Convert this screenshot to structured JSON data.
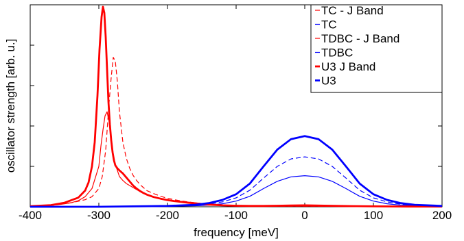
{
  "chart_data": {
    "type": "line",
    "xlabel": "frequency [meV]",
    "ylabel": "oscillator strength [arb. u.]",
    "xlim": [
      -400,
      200
    ],
    "ylim": [
      0,
      1.0
    ],
    "xticks": [
      -400,
      -300,
      -200,
      -100,
      0,
      100,
      200
    ],
    "xtick_labels": [
      "-400",
      "-300",
      "-200",
      "-100",
      "0",
      "100",
      "200"
    ],
    "yticks": [
      0.2,
      0.4,
      0.6,
      0.8
    ],
    "grid": false,
    "legend_position": "top-right",
    "series": [
      {
        "name": "TC - J Band",
        "color": "#ff0000",
        "dash": "solid",
        "width": "thin",
        "x": [
          -400,
          -380,
          -360,
          -340,
          -330,
          -320,
          -310,
          -300,
          -297,
          -294,
          -291,
          -288,
          -285,
          -282,
          -279,
          -276,
          -273,
          -270,
          -265,
          -260,
          -255,
          -250,
          -245,
          -240,
          -230,
          -220,
          -210,
          -200,
          -190,
          -180,
          -170,
          -160,
          -150,
          -140,
          -130,
          -120,
          -110,
          -100,
          -80,
          -60,
          -40,
          -20,
          0,
          50,
          100,
          150,
          200
        ],
        "y": [
          0.002,
          0.005,
          0.01,
          0.02,
          0.03,
          0.05,
          0.09,
          0.2,
          0.3,
          0.38,
          0.45,
          0.47,
          0.42,
          0.34,
          0.26,
          0.21,
          0.18,
          0.15,
          0.13,
          0.115,
          0.105,
          0.095,
          0.085,
          0.075,
          0.06,
          0.05,
          0.042,
          0.035,
          0.03,
          0.026,
          0.023,
          0.02,
          0.016,
          0.013,
          0.01,
          0.008,
          0.006,
          0.005,
          0.004,
          0.003,
          0.003,
          0.003,
          0.003,
          0.002,
          0.001,
          0.001,
          0.001
        ]
      },
      {
        "name": "TC",
        "color": "#0000ff",
        "dash": "solid",
        "width": "thin",
        "x": [
          -400,
          -300,
          -200,
          -160,
          -140,
          -120,
          -100,
          -80,
          -60,
          -40,
          -20,
          0,
          20,
          40,
          60,
          80,
          100,
          120,
          140,
          160,
          200
        ],
        "y": [
          0,
          0,
          0.002,
          0.005,
          0.008,
          0.015,
          0.028,
          0.052,
          0.09,
          0.126,
          0.148,
          0.154,
          0.148,
          0.126,
          0.09,
          0.052,
          0.028,
          0.015,
          0.008,
          0.005,
          0.002
        ]
      },
      {
        "name": "TDBC - J Band",
        "color": "#ff0000",
        "dash": "dashed",
        "width": "thin",
        "x": [
          -400,
          -370,
          -340,
          -320,
          -310,
          -300,
          -295,
          -290,
          -285,
          -282,
          -279,
          -276,
          -273,
          -270,
          -265,
          -260,
          -255,
          -250,
          -245,
          -240,
          -235,
          -230,
          -220,
          -210,
          -200,
          -190,
          -180,
          -170,
          -160,
          -150,
          -140,
          -130,
          -120,
          -100,
          -80,
          -60,
          -40,
          -20,
          0,
          50,
          100,
          150,
          200
        ],
        "y": [
          0.003,
          0.008,
          0.02,
          0.035,
          0.05,
          0.09,
          0.15,
          0.28,
          0.52,
          0.64,
          0.74,
          0.72,
          0.62,
          0.47,
          0.32,
          0.24,
          0.19,
          0.155,
          0.13,
          0.11,
          0.095,
          0.08,
          0.065,
          0.052,
          0.042,
          0.035,
          0.029,
          0.024,
          0.02,
          0.016,
          0.013,
          0.01,
          0.008,
          0.005,
          0.004,
          0.003,
          0.003,
          0.003,
          0.003,
          0.002,
          0.001,
          0.001,
          0.001
        ]
      },
      {
        "name": "TDBC",
        "color": "#0000ff",
        "dash": "dashed",
        "width": "thin",
        "x": [
          -400,
          -300,
          -200,
          -160,
          -140,
          -120,
          -100,
          -80,
          -60,
          -40,
          -20,
          0,
          20,
          40,
          60,
          80,
          100,
          120,
          140,
          160,
          200
        ],
        "y": [
          0,
          0,
          0.003,
          0.008,
          0.013,
          0.024,
          0.044,
          0.082,
          0.142,
          0.2,
          0.237,
          0.247,
          0.237,
          0.2,
          0.142,
          0.082,
          0.044,
          0.024,
          0.013,
          0.008,
          0.003
        ]
      },
      {
        "name": "U3 J Band",
        "color": "#ff0000",
        "dash": "solid",
        "width": "thick",
        "x": [
          -400,
          -370,
          -350,
          -330,
          -320,
          -315,
          -310,
          -306,
          -302,
          -299,
          -296,
          -294,
          -292,
          -290,
          -288,
          -286,
          -284,
          -282,
          -280,
          -278,
          -276,
          -273,
          -270,
          -265,
          -260,
          -255,
          -250,
          -245,
          -240,
          -235,
          -230,
          -220,
          -210,
          -200,
          -190,
          -180,
          -170,
          -160,
          -150,
          -140,
          -130,
          -120,
          -100,
          -80,
          -60,
          -40,
          -20,
          0,
          50,
          100,
          150,
          200
        ],
        "y": [
          0.003,
          0.008,
          0.02,
          0.045,
          0.08,
          0.12,
          0.2,
          0.32,
          0.55,
          0.78,
          0.94,
          0.99,
          0.96,
          0.84,
          0.68,
          0.52,
          0.41,
          0.33,
          0.27,
          0.23,
          0.205,
          0.19,
          0.18,
          0.165,
          0.145,
          0.125,
          0.105,
          0.09,
          0.078,
          0.068,
          0.06,
          0.048,
          0.04,
          0.033,
          0.028,
          0.024,
          0.02,
          0.017,
          0.014,
          0.011,
          0.009,
          0.007,
          0.005,
          0.004,
          0.004,
          0.005,
          0.006,
          0.007,
          0.004,
          0.002,
          0.001,
          0.001
        ]
      },
      {
        "name": "U3",
        "color": "#0000ff",
        "dash": "solid",
        "width": "thick",
        "x": [
          -400,
          -300,
          -200,
          -160,
          -140,
          -120,
          -100,
          -80,
          -60,
          -40,
          -20,
          0,
          20,
          40,
          60,
          80,
          100,
          120,
          140,
          160,
          200
        ],
        "y": [
          0,
          0,
          0.004,
          0.01,
          0.018,
          0.034,
          0.062,
          0.115,
          0.2,
          0.283,
          0.335,
          0.35,
          0.335,
          0.283,
          0.2,
          0.115,
          0.062,
          0.034,
          0.018,
          0.01,
          0.004
        ]
      }
    ]
  }
}
